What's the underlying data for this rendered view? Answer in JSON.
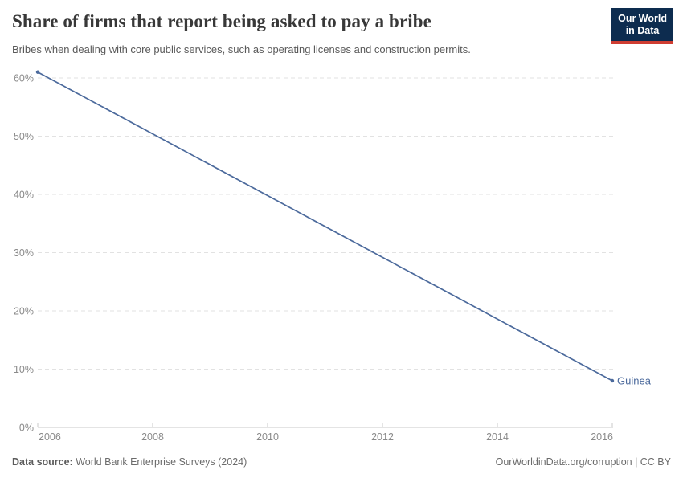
{
  "header": {
    "title": "Share of firms that report being asked to pay a bribe",
    "subtitle": "Bribes when dealing with core public services, such as operating licenses and construction permits.",
    "logo": {
      "line1": "Our World",
      "line2": "in Data",
      "bg_color": "#0d2c4f",
      "accent_color": "#cf3d32"
    }
  },
  "chart_data": {
    "type": "line",
    "title": "Share of firms that report being asked to pay a bribe",
    "xlabel": "",
    "ylabel": "",
    "xlim": [
      2006,
      2016
    ],
    "ylim": [
      0,
      62
    ],
    "x_ticks": [
      2006,
      2008,
      2010,
      2012,
      2014,
      2016
    ],
    "y_ticks_percent": [
      0,
      10,
      20,
      30,
      40,
      50,
      60
    ],
    "y_tick_suffix": "%",
    "grid": "horizontal-dashed",
    "legend_position": "end-of-line-label",
    "series": [
      {
        "name": "Guinea",
        "color": "#4C6A9C",
        "points": [
          {
            "x": 2006,
            "y": 61
          },
          {
            "x": 2016,
            "y": 8
          }
        ]
      }
    ]
  },
  "footer": {
    "datasource_label": "Data source:",
    "datasource_value": "World Bank Enterprise Surveys (2024)",
    "credit": "OurWorldinData.org/corruption | CC BY"
  },
  "colors": {
    "line": "#4C6A9C",
    "grid": "#e2e2e2",
    "axis": "#c9c9c9",
    "tick_label": "#8a8a8a",
    "title": "#383838",
    "subtitle": "#5a5a5a"
  }
}
